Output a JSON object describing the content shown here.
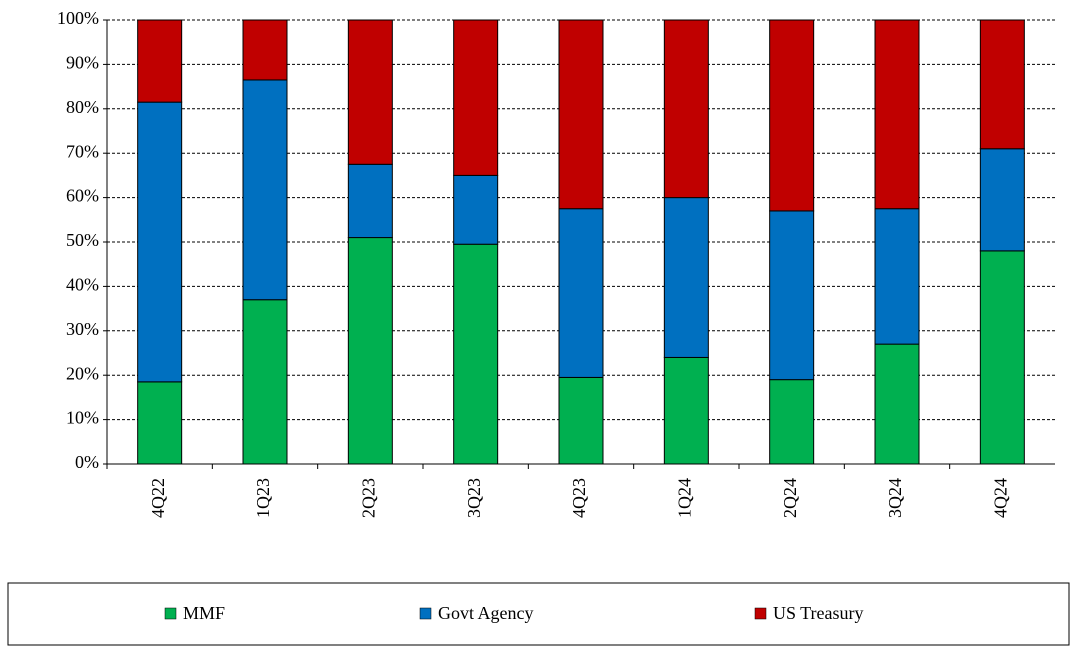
{
  "chart_data": {
    "type": "stacked_bar",
    "categories": [
      "4Q22",
      "1Q23",
      "2Q23",
      "3Q23",
      "4Q23",
      "1Q24",
      "2Q24",
      "3Q24",
      "4Q24"
    ],
    "series": [
      {
        "name": "MMF",
        "color": "#00b050",
        "values": [
          18.5,
          37,
          51,
          49.5,
          19.5,
          24,
          19,
          27,
          48
        ]
      },
      {
        "name": "Govt Agency",
        "color": "#0070c0",
        "values": [
          63,
          49.5,
          16.5,
          15.5,
          38,
          36,
          38,
          30.5,
          23
        ]
      },
      {
        "name": "US Treasury",
        "color": "#c00000",
        "values": [
          18.5,
          13.5,
          32.5,
          35,
          42.5,
          40,
          43,
          42.5,
          29
        ]
      }
    ],
    "ylim": [
      0,
      100
    ],
    "yticks": [
      {
        "value": 0,
        "label": "0%"
      },
      {
        "value": 10,
        "label": "10%"
      },
      {
        "value": 20,
        "label": "20%"
      },
      {
        "value": 30,
        "label": "30%"
      },
      {
        "value": 40,
        "label": "40%"
      },
      {
        "value": 50,
        "label": "50%"
      },
      {
        "value": 60,
        "label": "60%"
      },
      {
        "value": 70,
        "label": "70%"
      },
      {
        "value": 80,
        "label": "80%"
      },
      {
        "value": 90,
        "label": "90%"
      },
      {
        "value": 100,
        "label": "100%"
      }
    ],
    "grid": true,
    "legend": "bottom"
  }
}
